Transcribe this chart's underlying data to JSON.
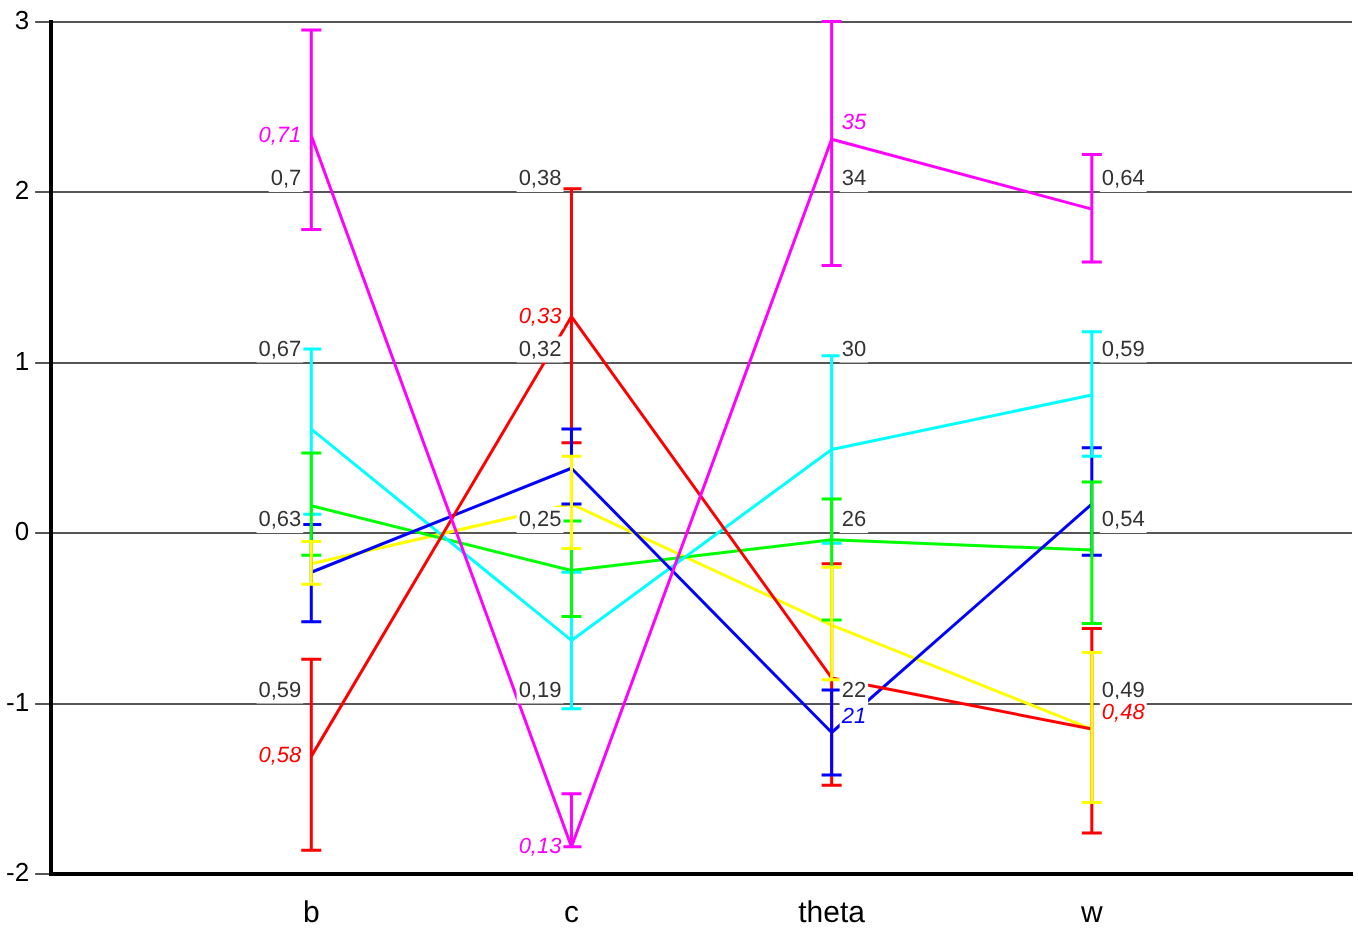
{
  "chart_data": {
    "type": "line",
    "categories": [
      null,
      "b",
      "c",
      "theta",
      "w",
      null
    ],
    "ylim": [
      -2,
      3
    ],
    "yticks": [
      -2,
      -1,
      0,
      1,
      2,
      3
    ],
    "grid": "y",
    "legend": false,
    "marker": "none",
    "line_style": "solid",
    "series": [
      {
        "color": "#ff00ff",
        "values": [
          null,
          2.33,
          -1.84,
          2.31,
          1.9,
          null
        ],
        "errors": [
          null,
          [
            1.78,
            2.95
          ],
          [
            -1.84,
            -1.53
          ],
          [
            1.57,
            3
          ],
          [
            1.59,
            2.22
          ],
          null
        ]
      },
      {
        "color": "#ff0000",
        "values": [
          null,
          -1.31,
          1.27,
          -0.85,
          -1.15,
          null
        ],
        "errors": [
          null,
          [
            -1.86,
            -0.74
          ],
          [
            0.53,
            2.02
          ],
          [
            -1.48,
            -0.18
          ],
          [
            -1.76,
            -0.56
          ],
          null
        ]
      },
      {
        "color": "#0000ff",
        "values": [
          null,
          -0.23,
          0.38,
          -1.17,
          0.17,
          null
        ],
        "errors": [
          null,
          [
            -0.52,
            0.05
          ],
          [
            0.17,
            0.61
          ],
          [
            -1.42,
            -0.92
          ],
          [
            -0.13,
            0.5
          ],
          null
        ]
      },
      {
        "color": "#00ffff",
        "values": [
          null,
          0.61,
          -0.63,
          0.49,
          0.81,
          null
        ],
        "errors": [
          null,
          [
            0.11,
            1.08
          ],
          [
            -1.03,
            -0.23
          ],
          [
            -0.06,
            1.04
          ],
          [
            0.45,
            1.18
          ],
          null
        ]
      },
      {
        "color": "#00ff00",
        "values": [
          null,
          0.16,
          -0.22,
          -0.04,
          -0.1,
          null
        ],
        "errors": [
          null,
          [
            -0.13,
            0.47
          ],
          [
            -0.49,
            0.07
          ],
          [
            -0.51,
            0.2
          ],
          [
            -0.53,
            0.3
          ],
          null
        ]
      },
      {
        "color": "#ffff00",
        "values": [
          null,
          -0.18,
          0.17,
          -0.54,
          -1.15,
          null
        ],
        "errors": [
          null,
          [
            -0.3,
            -0.05
          ],
          [
            -0.09,
            0.45
          ],
          [
            -0.86,
            -0.2
          ],
          [
            -1.58,
            -0.7
          ],
          null
        ]
      }
    ],
    "annotations": [
      {
        "text": "0,7",
        "x": "b",
        "y": 2
      },
      {
        "text": "0,67",
        "x": "b",
        "y": 1
      },
      {
        "text": "0,63",
        "x": "b",
        "y": 0
      },
      {
        "text": "0,59",
        "x": "b",
        "y": -1
      },
      {
        "text": "0,38",
        "x": "c",
        "y": 2
      },
      {
        "text": "0,32",
        "x": "c",
        "y": 1
      },
      {
        "text": "0,25",
        "x": "c",
        "y": 0
      },
      {
        "text": "0,19",
        "x": "c",
        "y": -1
      },
      {
        "text": "34",
        "x": "theta",
        "y": 2
      },
      {
        "text": "30",
        "x": "theta",
        "y": 1
      },
      {
        "text": "26",
        "x": "theta",
        "y": 0
      },
      {
        "text": "22",
        "x": "theta",
        "y": -1
      },
      {
        "text": "0,64",
        "x": "w",
        "y": 2
      },
      {
        "text": "0,59",
        "x": "w",
        "y": 1
      },
      {
        "text": "0,54",
        "x": "w",
        "y": 0
      },
      {
        "text": "0,49",
        "x": "w",
        "y": -1
      },
      {
        "text": "0,71",
        "x": "b",
        "y": 2.33
      },
      {
        "text": "0,58",
        "x": "b",
        "y": -1.31
      },
      {
        "text": "0,33",
        "x": "c",
        "y": 1.27
      },
      {
        "text": "0,13",
        "x": "c",
        "y": -1.84
      },
      {
        "text": "35",
        "x": "theta",
        "y": 2.31
      },
      {
        "text": "21",
        "x": "theta",
        "y": -1.17
      },
      {
        "text": "0,48",
        "x": "w",
        "y": -1.15
      }
    ]
  }
}
